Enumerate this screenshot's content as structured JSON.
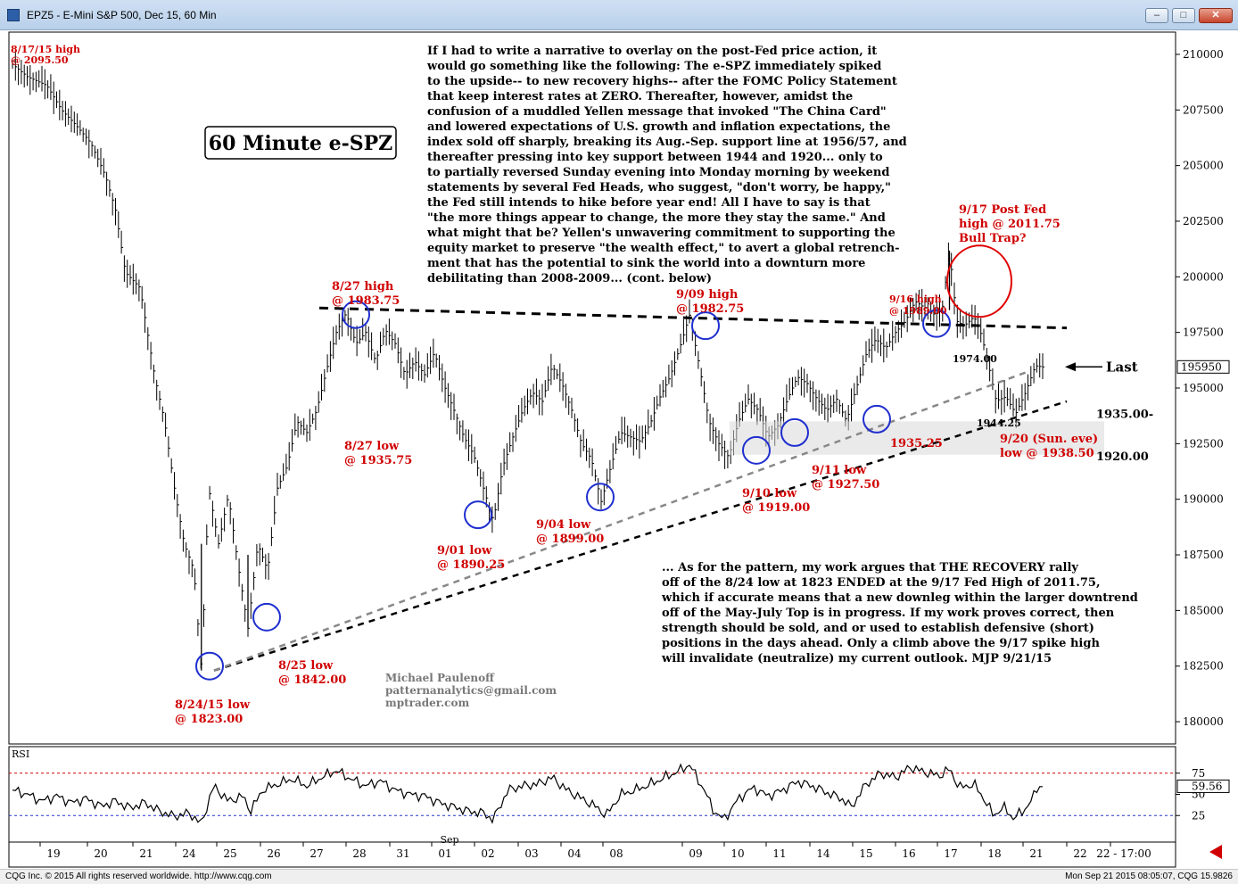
{
  "window": {
    "title": "EPZ5 - E-Mini S&P 500, Dec 15, 60 Min"
  },
  "chart_data": {
    "type": "bar",
    "title": "60 Minute e-SPZ",
    "price_axis": {
      "ticks": [
        210000,
        207500,
        205000,
        202500,
        200000,
        197500,
        195000,
        192500,
        190000,
        187500,
        185000,
        182500,
        180000
      ],
      "last_value": "195950"
    },
    "time_axis": {
      "labels": [
        "19",
        "20",
        "21",
        "24",
        "25",
        "26",
        "27",
        "28",
        "31",
        "01",
        "02",
        "03",
        "04",
        "08",
        "09",
        "10",
        "11",
        "14",
        "15",
        "16",
        "17",
        "18",
        "21",
        "22",
        "22 - 17:00"
      ],
      "month_label": "Sep"
    },
    "price_path": [
      [
        0,
        2095.5
      ],
      [
        0.3,
        2090
      ],
      [
        0.7,
        2086
      ],
      [
        1.0,
        2075
      ],
      [
        1.3,
        2068
      ],
      [
        1.6,
        2060
      ],
      [
        1.9,
        2045
      ],
      [
        2.1,
        2030
      ],
      [
        2.3,
        2002
      ],
      [
        2.6,
        1995
      ],
      [
        2.9,
        1955
      ],
      [
        3.1,
        1935
      ],
      [
        3.3,
        1905
      ],
      [
        3.5,
        1880
      ],
      [
        3.7,
        1868
      ],
      [
        3.85,
        1823
      ],
      [
        4.0,
        1905
      ],
      [
        4.2,
        1880
      ],
      [
        4.4,
        1902
      ],
      [
        4.6,
        1870
      ],
      [
        4.8,
        1842
      ],
      [
        5.0,
        1880
      ],
      [
        5.2,
        1868
      ],
      [
        5.4,
        1905
      ],
      [
        5.6,
        1915
      ],
      [
        5.8,
        1935
      ],
      [
        6.0,
        1930
      ],
      [
        6.2,
        1940
      ],
      [
        6.4,
        1958
      ],
      [
        6.6,
        1975
      ],
      [
        6.8,
        1983.75
      ],
      [
        7.0,
        1970
      ],
      [
        7.2,
        1975
      ],
      [
        7.4,
        1962
      ],
      [
        7.6,
        1976
      ],
      [
        7.8,
        1970
      ],
      [
        8.0,
        1956
      ],
      [
        8.2,
        1962
      ],
      [
        8.4,
        1956
      ],
      [
        8.6,
        1966
      ],
      [
        8.8,
        1951
      ],
      [
        9.0,
        1940
      ],
      [
        9.2,
        1928
      ],
      [
        9.4,
        1920
      ],
      [
        9.6,
        1905
      ],
      [
        9.8,
        1890.25
      ],
      [
        10.0,
        1915
      ],
      [
        10.2,
        1928
      ],
      [
        10.4,
        1940
      ],
      [
        10.6,
        1948
      ],
      [
        10.8,
        1944
      ],
      [
        11.0,
        1960
      ],
      [
        11.2,
        1952
      ],
      [
        11.4,
        1940
      ],
      [
        11.6,
        1925
      ],
      [
        11.8,
        1918
      ],
      [
        12.0,
        1899
      ],
      [
        12.2,
        1915
      ],
      [
        12.4,
        1930
      ],
      [
        12.6,
        1928
      ],
      [
        12.8,
        1926
      ],
      [
        13.0,
        1934
      ],
      [
        13.2,
        1946
      ],
      [
        13.4,
        1955
      ],
      [
        13.6,
        1968
      ],
      [
        13.8,
        1982.75
      ],
      [
        14.0,
        1960
      ],
      [
        14.2,
        1935
      ],
      [
        14.4,
        1925
      ],
      [
        14.6,
        1919
      ],
      [
        14.8,
        1935
      ],
      [
        15.0,
        1945
      ],
      [
        15.2,
        1940
      ],
      [
        15.4,
        1928
      ],
      [
        15.6,
        1933
      ],
      [
        15.8,
        1945
      ],
      [
        16.0,
        1955
      ],
      [
        16.2,
        1952
      ],
      [
        16.4,
        1945
      ],
      [
        16.6,
        1940
      ],
      [
        16.8,
        1945
      ],
      [
        17.0,
        1935.25
      ],
      [
        17.2,
        1950
      ],
      [
        17.4,
        1965
      ],
      [
        17.6,
        1972
      ],
      [
        17.8,
        1968
      ],
      [
        18.0,
        1975
      ],
      [
        18.2,
        1980
      ],
      [
        18.4,
        1989
      ],
      [
        18.6,
        1986
      ],
      [
        18.8,
        1983
      ],
      [
        18.95,
        1985
      ],
      [
        19.1,
        2011.75
      ],
      [
        19.25,
        1980
      ],
      [
        19.4,
        1978
      ],
      [
        19.6,
        1982
      ],
      [
        19.75,
        1974
      ],
      [
        19.9,
        1960
      ],
      [
        20.05,
        1944.25
      ],
      [
        20.25,
        1946
      ],
      [
        20.45,
        1938.5
      ],
      [
        20.65,
        1948
      ],
      [
        20.85,
        1960
      ],
      [
        21.0,
        1959.5
      ]
    ],
    "rsi_path": [
      [
        0,
        55
      ],
      [
        0.3,
        50
      ],
      [
        0.6,
        42
      ],
      [
        0.9,
        48
      ],
      [
        1.2,
        40
      ],
      [
        1.5,
        45
      ],
      [
        1.8,
        36
      ],
      [
        2.1,
        42
      ],
      [
        2.4,
        34
      ],
      [
        2.7,
        40
      ],
      [
        3.0,
        30
      ],
      [
        3.3,
        24
      ],
      [
        3.6,
        28
      ],
      [
        3.85,
        15
      ],
      [
        4.1,
        60
      ],
      [
        4.4,
        42
      ],
      [
        4.7,
        48
      ],
      [
        4.85,
        30
      ],
      [
        5.1,
        55
      ],
      [
        5.4,
        62
      ],
      [
        5.7,
        68
      ],
      [
        6.0,
        60
      ],
      [
        6.3,
        70
      ],
      [
        6.6,
        78
      ],
      [
        6.9,
        68
      ],
      [
        7.2,
        60
      ],
      [
        7.5,
        66
      ],
      [
        7.8,
        55
      ],
      [
        8.1,
        50
      ],
      [
        8.4,
        48
      ],
      [
        8.7,
        40
      ],
      [
        9.0,
        35
      ],
      [
        9.3,
        30
      ],
      [
        9.6,
        28
      ],
      [
        9.8,
        20
      ],
      [
        10.1,
        55
      ],
      [
        10.4,
        60
      ],
      [
        10.7,
        62
      ],
      [
        11.0,
        70
      ],
      [
        11.3,
        55
      ],
      [
        11.6,
        45
      ],
      [
        11.9,
        35
      ],
      [
        12.1,
        25
      ],
      [
        12.4,
        50
      ],
      [
        12.7,
        55
      ],
      [
        13.0,
        62
      ],
      [
        13.3,
        70
      ],
      [
        13.6,
        78
      ],
      [
        13.8,
        85
      ],
      [
        14.1,
        55
      ],
      [
        14.3,
        30
      ],
      [
        14.5,
        20
      ],
      [
        14.8,
        45
      ],
      [
        15.1,
        58
      ],
      [
        15.4,
        48
      ],
      [
        15.7,
        55
      ],
      [
        16.0,
        65
      ],
      [
        16.3,
        60
      ],
      [
        16.6,
        52
      ],
      [
        16.9,
        45
      ],
      [
        17.1,
        35
      ],
      [
        17.4,
        62
      ],
      [
        17.7,
        75
      ],
      [
        18.0,
        70
      ],
      [
        18.3,
        82
      ],
      [
        18.6,
        76
      ],
      [
        18.9,
        72
      ],
      [
        19.1,
        80
      ],
      [
        19.3,
        58
      ],
      [
        19.6,
        62
      ],
      [
        19.8,
        45
      ],
      [
        20.0,
        25
      ],
      [
        20.2,
        35
      ],
      [
        20.4,
        22
      ],
      [
        20.6,
        30
      ],
      [
        20.8,
        45
      ],
      [
        20.9,
        60
      ],
      [
        21.0,
        59.56
      ]
    ],
    "rsi_panel": {
      "label": "RSI",
      "ticks": [
        75,
        50,
        25
      ],
      "upper_ref": 75,
      "lower_ref": 25,
      "last_value": "59.56"
    },
    "level_labels": {
      "last": "Last",
      "l1935": "1935.00-",
      "l1920": "1920.00"
    },
    "annotations": {
      "a_0817": [
        "8/17/15 high",
        "@ 2095.50"
      ],
      "a_0827h": [
        "8/27 high",
        "@ 1983.75"
      ],
      "a_0909": [
        "9/09 high",
        "@ 1982.75"
      ],
      "a_0916": [
        "9/16 high",
        "@ 1989.00"
      ],
      "a_0917": [
        "9/17 Post Fed",
        "high @ 2011.75",
        "Bull Trap?"
      ],
      "a_1974": [
        "1974.00"
      ],
      "a_1944": [
        "1944.25"
      ],
      "a_1935": [
        "1935.25"
      ],
      "a_0920": [
        "9/20 (Sun. eve)",
        "low @ 1938.50"
      ],
      "a_0827l": [
        "8/27 low",
        "@ 1935.75"
      ],
      "a_0901": [
        "9/01 low",
        "@ 1890.25"
      ],
      "a_0904": [
        "9/04 low",
        "@ 1899.00"
      ],
      "a_0910": [
        "9/10 low",
        "@ 1919.00"
      ],
      "a_0911": [
        "9/11 low",
        "@ 1927.50"
      ],
      "a_0825": [
        "8/25 low",
        "@ 1842.00"
      ],
      "a_0824": [
        "8/24/15 low",
        "@ 1823.00"
      ]
    },
    "narrative_top": [
      "If I had to write a narrative to overlay on the post-Fed price action, it",
      "would go something like the following: The e-SPZ immediately spiked",
      "to the upside-- to new recovery highs-- after the FOMC Policy Statement",
      "that keep interest rates at ZERO. Thereafter, however, amidst the",
      "confusion of a muddled Yellen message that invoked \"The China Card\"",
      "and lowered expectations of U.S. growth and inflation expectations, the",
      "index sold off sharply, breaking its Aug.-Sep. support line at 1956/57, and",
      "thereafter pressing into key support between 1944 and 1920... only to",
      "to partially reversed Sunday evening into Monday morning by weekend",
      "statements by several Fed Heads, who suggest, \"don't worry, be happy,\"",
      "the Fed still intends to hike before year end! All I have to say is that",
      "\"the more things appear to change, the more they stay the same.\" And",
      "what might that be? Yellen's unwavering commitment to supporting the",
      "equity market to preserve \"the wealth effect,\" to avert a global retrench-",
      "ment that has the potential to sink the world into a downturn more",
      "debilitating than 2008-2009... (cont. below)"
    ],
    "narrative_bottom": [
      "... As for the pattern, my work argues that THE RECOVERY rally",
      "off of the 8/24 low at 1823 ENDED at the 9/17 Fed High of 2011.75,",
      "which if accurate means that a new downleg within the larger downtrend",
      "off of the May-July Top is in progress. If my work proves correct, then",
      "strength should be sold, and or used to establish defensive (short)",
      "positions in the days ahead. Only a climb above the 9/17 spike high",
      "will invalidate (neutralize) my current outlook. MJP 9/21/15"
    ],
    "signature": [
      "Michael Paulenoff",
      "patternanalytics@gmail.com",
      "mptrader.com"
    ]
  },
  "footer": {
    "left": "CQG Inc. © 2015 All rights reserved worldwide. http://www.cqg.com",
    "right": "Mon Sep 21 2015 08:05:07, CQG 15.9826"
  }
}
